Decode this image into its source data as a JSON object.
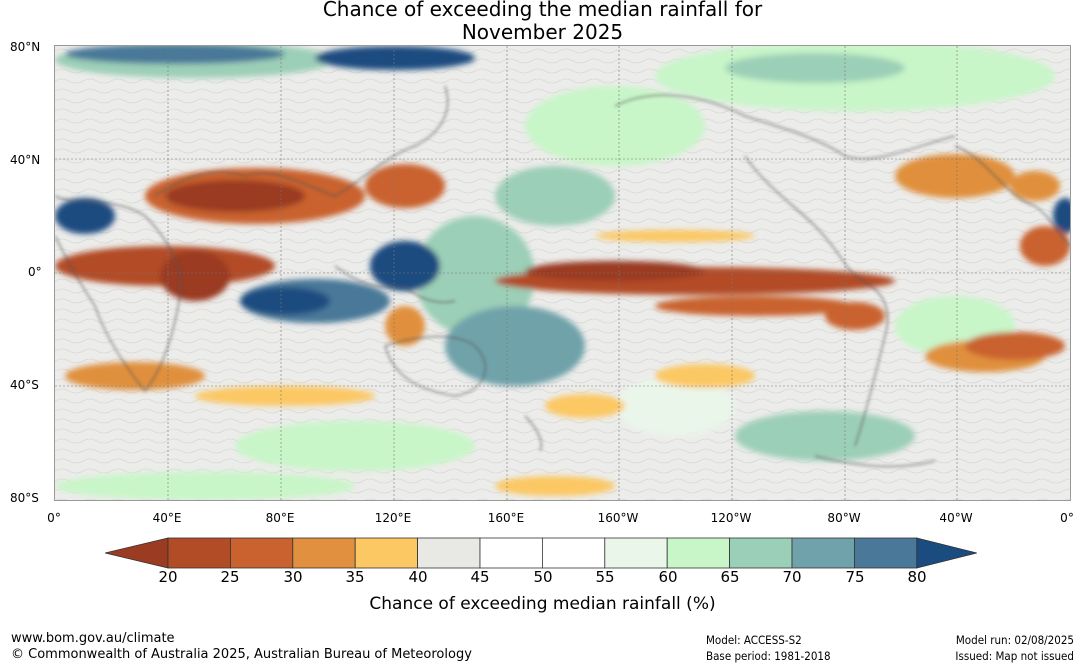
{
  "title_line1": "Chance of exceeding the median rainfall for",
  "title_line2": "November 2025",
  "lat_labels": [
    "80°N",
    "40°N",
    "0°",
    "40°S",
    "80°S"
  ],
  "lon_labels": [
    "0°",
    "40°E",
    "80°E",
    "120°E",
    "160°E",
    "160°W",
    "120°W",
    "80°W",
    "40°W",
    "0°"
  ],
  "colorbar": {
    "ticks": [
      "20",
      "25",
      "30",
      "35",
      "40",
      "45",
      "50",
      "55",
      "60",
      "65",
      "70",
      "75",
      "80"
    ],
    "colors": [
      "#9a3b22",
      "#b24c26",
      "#c9622e",
      "#e0903e",
      "#fcc863",
      "#e8e8e4",
      "#ffffff",
      "#ffffff",
      "#eaf6ea",
      "#c8f6c8",
      "#9ccfb7",
      "#6fa2aa",
      "#4a7898",
      "#1b4c80"
    ],
    "label": "Chance of exceeding median rainfall (%)"
  },
  "footer": {
    "url": "www.bom.gov.au/climate",
    "copyright": "© Commonwealth of Australia 2025, Australian Bureau of Meteorology",
    "model": "Model: ACCESS-S2",
    "base_period": "Base period: 1981-2018",
    "model_run": "Model run: 02/08/2025",
    "issued": "Issued: Map not issued"
  }
}
